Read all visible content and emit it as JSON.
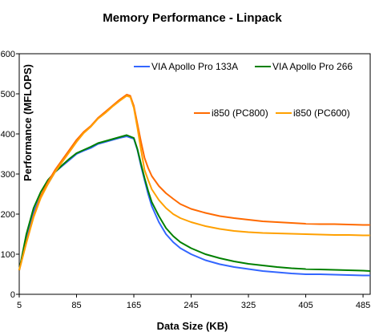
{
  "chart_data": {
    "type": "line",
    "title": "Memory Performance - Linpack",
    "xlabel": "Data Size (KB)",
    "ylabel": "Performance (MFLOPS)",
    "xlim": [
      5,
      495
    ],
    "ylim": [
      0,
      600
    ],
    "x_ticks": [
      5,
      85,
      165,
      245,
      325,
      405,
      485
    ],
    "y_ticks": [
      0,
      100,
      200,
      300,
      400,
      500,
      600
    ],
    "grid": false,
    "legend": "top-right",
    "series": [
      {
        "name": "VIA Apollo Pro 133A",
        "color": "#3366ff",
        "points": [
          [
            5,
            60
          ],
          [
            15,
            140
          ],
          [
            25,
            205
          ],
          [
            35,
            245
          ],
          [
            45,
            275
          ],
          [
            55,
            305
          ],
          [
            65,
            320
          ],
          [
            75,
            335
          ],
          [
            85,
            350
          ],
          [
            95,
            358
          ],
          [
            105,
            365
          ],
          [
            115,
            375
          ],
          [
            125,
            380
          ],
          [
            135,
            385
          ],
          [
            145,
            390
          ],
          [
            155,
            394
          ],
          [
            165,
            388
          ],
          [
            170,
            360
          ],
          [
            175,
            320
          ],
          [
            180,
            285
          ],
          [
            185,
            250
          ],
          [
            190,
            220
          ],
          [
            200,
            180
          ],
          [
            210,
            150
          ],
          [
            220,
            130
          ],
          [
            230,
            115
          ],
          [
            245,
            100
          ],
          [
            265,
            85
          ],
          [
            285,
            75
          ],
          [
            305,
            68
          ],
          [
            325,
            63
          ],
          [
            345,
            58
          ],
          [
            365,
            55
          ],
          [
            385,
            52
          ],
          [
            405,
            50
          ],
          [
            425,
            50
          ],
          [
            445,
            49
          ],
          [
            465,
            48
          ],
          [
            485,
            47
          ],
          [
            495,
            47
          ]
        ]
      },
      {
        "name": "VIA Apollo Pro 266",
        "color": "#008000",
        "points": [
          [
            5,
            60
          ],
          [
            15,
            150
          ],
          [
            25,
            215
          ],
          [
            35,
            255
          ],
          [
            45,
            285
          ],
          [
            55,
            305
          ],
          [
            65,
            322
          ],
          [
            75,
            338
          ],
          [
            85,
            352
          ],
          [
            95,
            360
          ],
          [
            105,
            368
          ],
          [
            115,
            377
          ],
          [
            125,
            382
          ],
          [
            135,
            387
          ],
          [
            145,
            392
          ],
          [
            155,
            397
          ],
          [
            165,
            390
          ],
          [
            170,
            362
          ],
          [
            175,
            325
          ],
          [
            180,
            290
          ],
          [
            185,
            258
          ],
          [
            190,
            230
          ],
          [
            200,
            195
          ],
          [
            210,
            165
          ],
          [
            220,
            145
          ],
          [
            230,
            130
          ],
          [
            245,
            115
          ],
          [
            265,
            100
          ],
          [
            285,
            90
          ],
          [
            305,
            82
          ],
          [
            325,
            76
          ],
          [
            345,
            72
          ],
          [
            365,
            68
          ],
          [
            385,
            65
          ],
          [
            405,
            63
          ],
          [
            425,
            62
          ],
          [
            445,
            61
          ],
          [
            465,
            60
          ],
          [
            485,
            59
          ],
          [
            495,
            58
          ]
        ]
      },
      {
        "name": "i850 (PC800)",
        "color": "#ff6a00",
        "points": [
          [
            5,
            60
          ],
          [
            15,
            130
          ],
          [
            25,
            195
          ],
          [
            35,
            245
          ],
          [
            45,
            280
          ],
          [
            55,
            310
          ],
          [
            65,
            335
          ],
          [
            75,
            360
          ],
          [
            85,
            385
          ],
          [
            95,
            405
          ],
          [
            105,
            420
          ],
          [
            115,
            440
          ],
          [
            125,
            455
          ],
          [
            135,
            470
          ],
          [
            145,
            485
          ],
          [
            155,
            498
          ],
          [
            160,
            495
          ],
          [
            165,
            470
          ],
          [
            170,
            425
          ],
          [
            175,
            380
          ],
          [
            180,
            340
          ],
          [
            185,
            315
          ],
          [
            190,
            295
          ],
          [
            200,
            270
          ],
          [
            210,
            252
          ],
          [
            220,
            238
          ],
          [
            230,
            225
          ],
          [
            245,
            213
          ],
          [
            265,
            203
          ],
          [
            285,
            195
          ],
          [
            305,
            190
          ],
          [
            325,
            186
          ],
          [
            345,
            182
          ],
          [
            365,
            180
          ],
          [
            385,
            178
          ],
          [
            405,
            176
          ],
          [
            425,
            175
          ],
          [
            445,
            175
          ],
          [
            465,
            174
          ],
          [
            485,
            173
          ],
          [
            495,
            173
          ]
        ]
      },
      {
        "name": "i850 (PC600)",
        "color": "#ffa000",
        "points": [
          [
            5,
            60
          ],
          [
            15,
            128
          ],
          [
            25,
            192
          ],
          [
            35,
            240
          ],
          [
            45,
            275
          ],
          [
            55,
            305
          ],
          [
            65,
            330
          ],
          [
            75,
            355
          ],
          [
            85,
            380
          ],
          [
            95,
            402
          ],
          [
            105,
            418
          ],
          [
            115,
            438
          ],
          [
            125,
            452
          ],
          [
            135,
            468
          ],
          [
            145,
            482
          ],
          [
            155,
            495
          ],
          [
            160,
            492
          ],
          [
            165,
            465
          ],
          [
            170,
            415
          ],
          [
            175,
            360
          ],
          [
            180,
            310
          ],
          [
            185,
            285
          ],
          [
            190,
            262
          ],
          [
            200,
            235
          ],
          [
            210,
            215
          ],
          [
            220,
            200
          ],
          [
            230,
            190
          ],
          [
            245,
            180
          ],
          [
            265,
            170
          ],
          [
            285,
            163
          ],
          [
            305,
            158
          ],
          [
            325,
            155
          ],
          [
            345,
            153
          ],
          [
            365,
            152
          ],
          [
            385,
            151
          ],
          [
            405,
            150
          ],
          [
            425,
            149
          ],
          [
            445,
            148
          ],
          [
            465,
            148
          ],
          [
            485,
            147
          ],
          [
            495,
            147
          ]
        ]
      }
    ]
  }
}
